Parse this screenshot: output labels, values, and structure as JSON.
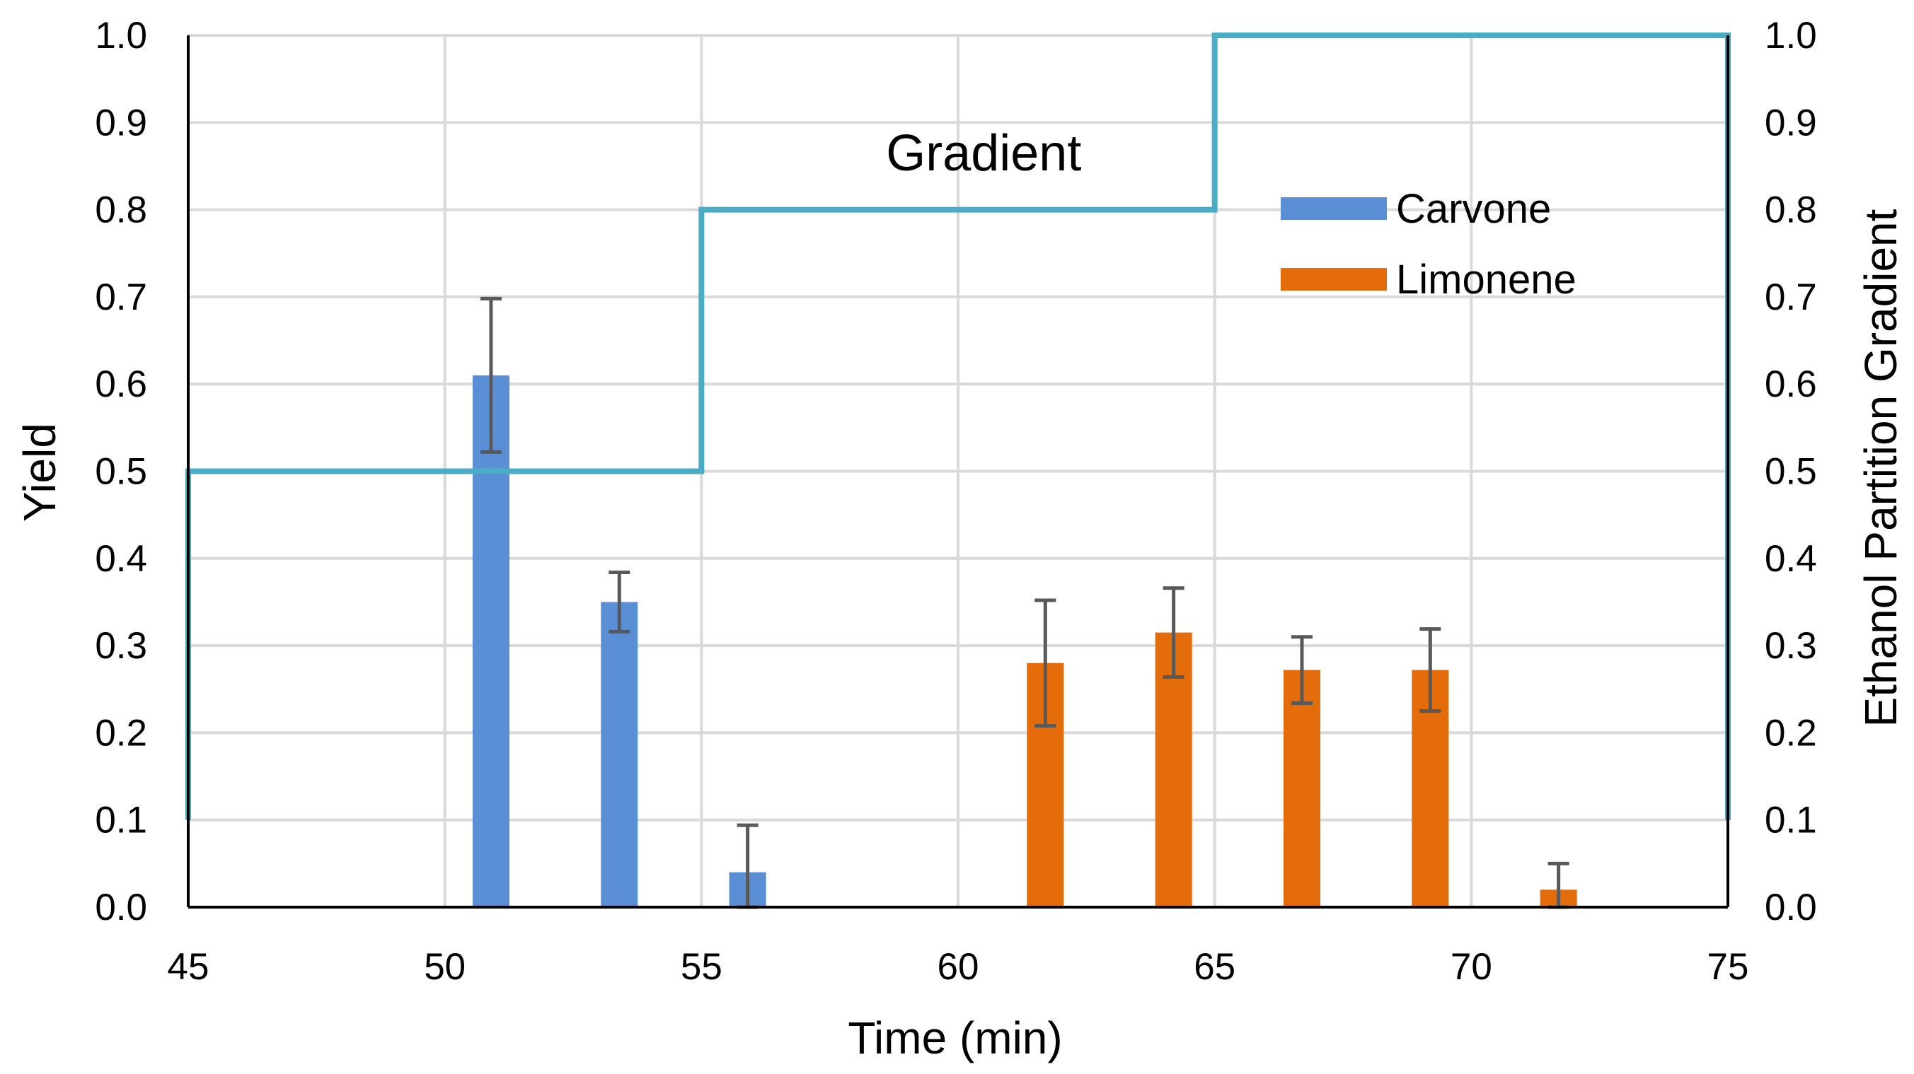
{
  "chart_data": {
    "type": "bar",
    "title": "",
    "xlabel": "Time (min)",
    "ylabel": "Yield",
    "y2label": "Ethanol Partition Gradient",
    "xlim": [
      45,
      75
    ],
    "ylim": [
      0,
      1
    ],
    "y2lim": [
      0,
      1
    ],
    "x_ticks": [
      "45",
      "50",
      "55",
      "60",
      "65",
      "70",
      "75"
    ],
    "y_ticks": [
      "0.0",
      "0.1",
      "0.2",
      "0.3",
      "0.4",
      "0.5",
      "0.6",
      "0.7",
      "0.8",
      "0.9",
      "1.0"
    ],
    "y2_ticks": [
      "0.0",
      "0.1",
      "0.2",
      "0.3",
      "0.4",
      "0.5",
      "0.6",
      "0.7",
      "0.8",
      "0.9",
      "1.0"
    ],
    "grid": true,
    "legend_position": "top-right",
    "series": [
      {
        "name": "Carvone",
        "type": "bar",
        "color": "#5A8FD6",
        "x": [
          50.9,
          53.4,
          55.9
        ],
        "values": [
          0.61,
          0.35,
          0.04
        ],
        "error": [
          0.088,
          0.034,
          0.054
        ]
      },
      {
        "name": "Limonene",
        "type": "bar",
        "color": "#E46C0A",
        "x": [
          61.7,
          64.2,
          66.7,
          69.2,
          71.7
        ],
        "values": [
          0.28,
          0.315,
          0.272,
          0.272,
          0.02
        ],
        "error": [
          0.072,
          0.051,
          0.038,
          0.047,
          0.03
        ]
      },
      {
        "name": "Gradient",
        "type": "step-line",
        "axis": "right",
        "color": "#4BACC6",
        "points": [
          [
            45,
            0.1
          ],
          [
            45,
            0.5
          ],
          [
            55,
            0.5
          ],
          [
            55,
            0.8
          ],
          [
            65,
            0.8
          ],
          [
            65,
            1.0
          ],
          [
            75,
            1.0
          ],
          [
            75,
            0.1
          ]
        ]
      }
    ],
    "annotations": [
      {
        "text": "Gradient",
        "x": 60.5,
        "y": 0.845
      }
    ]
  }
}
